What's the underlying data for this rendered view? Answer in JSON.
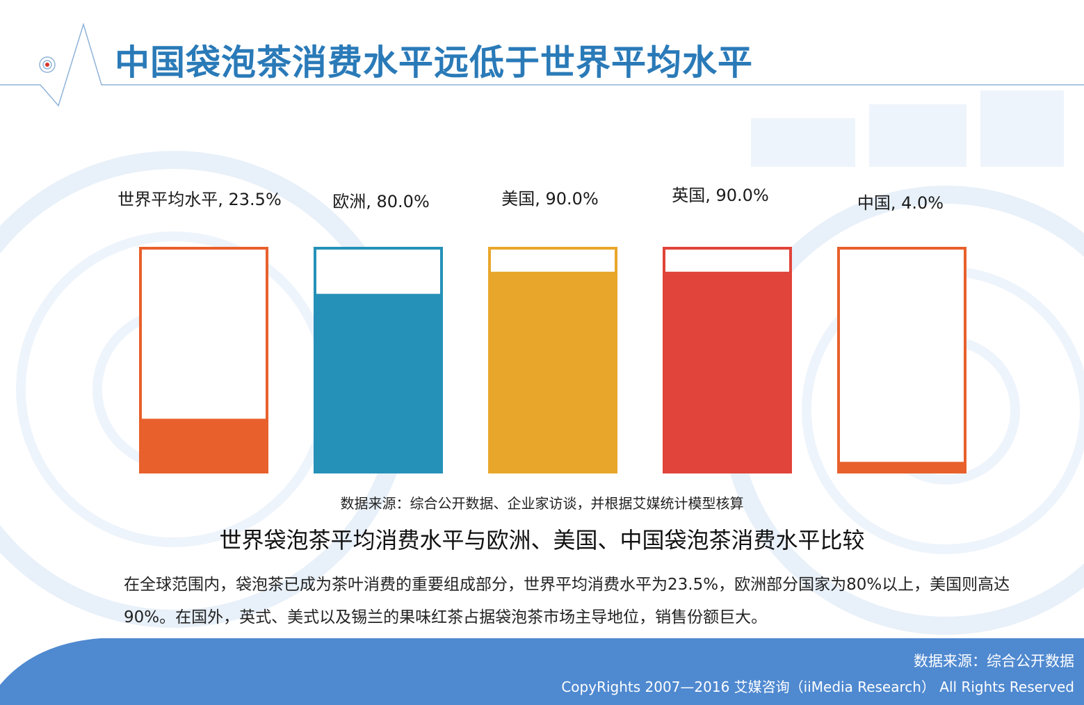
{
  "slide": {
    "title": "中国袋泡茶消费水平远低于世界平均水平",
    "chart_source": "数据来源：综合公开数据、企业家访谈，并根据艾媒统计模型核算",
    "chart_caption": "世界袋泡茶平均消费水平与欧洲、美国、中国袋泡茶消费水平比较",
    "description": "在全球范围内，袋泡茶已成为茶叶消费的重要组成部分，世界平均消费水平为23.5%，欧洲部分国家为80%以上，美国则高达90%。在国外，英式、美式以及锡兰的果味红茶占据袋泡茶市场主导地位，销售份额巨大。"
  },
  "footer": {
    "source": "数据来源：综合公开数据",
    "copyright": "CopyRights 2007—2016 艾媒咨询（iiMedia Research） All Rights Reserved"
  },
  "colors": {
    "title": "#2a7ab8",
    "footer_band": "#4f89d0",
    "bars": [
      "#e8602c",
      "#2591b8",
      "#e8a72b",
      "#e0443a",
      "#e8602c"
    ]
  },
  "chart_data": {
    "type": "bar",
    "title": "",
    "categories": [
      "世界平均水平",
      "欧洲",
      "美国",
      "英国",
      "中国"
    ],
    "values": [
      23.5,
      80.0,
      90.0,
      90.0,
      4.0
    ],
    "labels": [
      "世界平均水平, 23.5%",
      "欧洲, 80.0%",
      "美国, 90.0%",
      "英国, 90.0%",
      "中国, 4.0%"
    ],
    "unit": "%",
    "ylim": [
      0,
      100
    ],
    "legend": "none",
    "grid": false
  }
}
